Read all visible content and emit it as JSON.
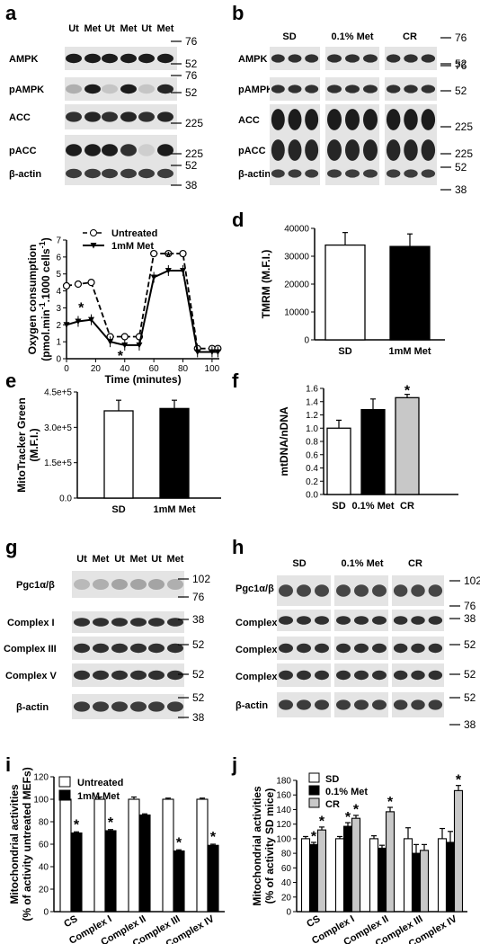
{
  "panels": {
    "a": {
      "letter": "a",
      "columns": [
        "Ut",
        "Met",
        "Ut",
        "Met",
        "Ut",
        "Met"
      ],
      "rows": [
        "AMPK",
        "pAMPK",
        "ACC",
        "pACC",
        "β-actin"
      ],
      "markers": [
        "76",
        "52",
        "76",
        "52",
        "225",
        "225",
        "52",
        "38"
      ]
    },
    "b": {
      "letter": "b",
      "groups": [
        "SD",
        "0.1% Met",
        "CR"
      ],
      "rows": [
        "AMPK",
        "pAMPK",
        "ACC",
        "pACC",
        "β-actin"
      ],
      "markers": [
        "76",
        "52",
        "76",
        "52",
        "225",
        "225",
        "52",
        "38"
      ]
    },
    "g": {
      "letter": "g",
      "columns": [
        "Ut",
        "Met",
        "Ut",
        "Met",
        "Ut",
        "Met"
      ],
      "rows": [
        "Pgc1α/β",
        "Complex I",
        "Complex III",
        "Complex V",
        "β-actin"
      ],
      "markers": [
        "102",
        "76",
        "38",
        "52",
        "52",
        "52",
        "38"
      ]
    },
    "h": {
      "letter": "h",
      "groups": [
        "SD",
        "0.1% Met",
        "CR"
      ],
      "rows": [
        "Pgc1α/β",
        "Complex I",
        "Complex III",
        "Complex V",
        "β-actin"
      ],
      "markers": [
        "102",
        "76",
        "38",
        "52",
        "52",
        "52",
        "38"
      ]
    }
  },
  "chart_data": [
    {
      "panel": "c",
      "type": "line",
      "ylabel": "Oxygen consumption (pmol.min-1.1000 cells-1)",
      "ylabel_line1": "Oxygen consumption",
      "ylabel_line2": "(pmol.min",
      "ylabel_sup1": "-1",
      "ylabel_mid": ".1000 cells",
      "ylabel_sup2": "-1",
      "ylabel_end": ")",
      "xlabel": "Time (minutes)",
      "xlim": [
        0,
        105
      ],
      "ylim": [
        0,
        7
      ],
      "xticks": [
        "0",
        "20",
        "40",
        "60",
        "80",
        "100"
      ],
      "yticks": [
        "0",
        "1",
        "2",
        "3",
        "4",
        "5",
        "6",
        "7"
      ],
      "x": [
        0,
        8,
        17,
        30,
        40,
        50,
        60,
        70,
        80,
        90,
        100,
        104
      ],
      "series": [
        {
          "name": "Untreated",
          "values": [
            4.3,
            4.4,
            4.5,
            1.3,
            1.3,
            1.3,
            6.2,
            6.2,
            6.2,
            0.6,
            0.6,
            0.6
          ]
        },
        {
          "name": "1mM Met",
          "values": [
            2.0,
            2.2,
            2.3,
            1.0,
            0.8,
            0.8,
            4.8,
            5.2,
            5.2,
            0.4,
            0.4,
            0.4
          ]
        }
      ],
      "annotations": [
        "*",
        "*",
        "*"
      ]
    },
    {
      "panel": "d",
      "type": "bar",
      "ylabel": "TMRM (M.F.I.)",
      "categories": [
        "SD",
        "1mM Met"
      ],
      "values": [
        34000,
        33500
      ],
      "errors": [
        4500,
        4500
      ],
      "ylim": [
        0,
        40000
      ],
      "yticks": [
        "0",
        "10000",
        "20000",
        "30000",
        "40000"
      ]
    },
    {
      "panel": "e",
      "type": "bar",
      "ylabel": "MitoTracker Green (M.F.I.)",
      "ylabel_line1": "MitoTracker Green",
      "ylabel_line2": "(M.F.I.)",
      "categories": [
        "SD",
        "1mM Met"
      ],
      "values": [
        370000,
        380000
      ],
      "errors": [
        45000,
        35000
      ],
      "ylim": [
        0,
        450000
      ],
      "yticks": [
        "0.0",
        "1.5e+5",
        "3.0e+5",
        "4.5e+5"
      ]
    },
    {
      "panel": "f",
      "type": "bar",
      "ylabel": "mtDNA/nDNA",
      "categories": [
        "SD",
        "0.1% Met",
        "CR"
      ],
      "values": [
        1.0,
        1.28,
        1.46
      ],
      "errors": [
        0.12,
        0.16,
        0.05
      ],
      "ylim": [
        0,
        1.6
      ],
      "yticks": [
        "0.0",
        "0.2",
        "0.4",
        "0.6",
        "0.8",
        "1.0",
        "1.2",
        "1.4",
        "1.6"
      ],
      "annotations": [
        "*"
      ]
    },
    {
      "panel": "i",
      "type": "bar",
      "ylabel": "Mitochondrial activities (% of activity untreated MEFs)",
      "ylabel_line1": "Mitochondrial activities",
      "ylabel_line2": "(% of activity untreated MEFs)",
      "categories": [
        "CS",
        "Complex I",
        "Complex II",
        "Complex III",
        "Complex IV"
      ],
      "series": [
        {
          "name": "Untreated",
          "values": [
            100,
            100,
            100,
            100,
            100
          ],
          "errors": [
            2,
            2,
            2,
            1,
            1
          ]
        },
        {
          "name": "1mM Met",
          "values": [
            70,
            72,
            86,
            54,
            59
          ],
          "errors": [
            1,
            1,
            1,
            1,
            1
          ]
        }
      ],
      "ylim": [
        0,
        120
      ],
      "yticks": [
        "0",
        "20",
        "40",
        "60",
        "80",
        "100",
        "120"
      ],
      "annotations": [
        "*",
        "*",
        "*",
        "*"
      ]
    },
    {
      "panel": "j",
      "type": "bar",
      "ylabel": "Mitochondrial activities (% of activity SD mice)",
      "ylabel_line1": "Mitochondrial activities",
      "ylabel_line2": "(% of activity SD mice)",
      "categories": [
        "CS",
        "Complex I",
        "Complex II",
        "Complex III",
        "Complex IV"
      ],
      "series": [
        {
          "name": "SD",
          "values": [
            100,
            100,
            100,
            100,
            100
          ],
          "errors": [
            3,
            3,
            4,
            15,
            14
          ]
        },
        {
          "name": "0.1% Met",
          "values": [
            92,
            117,
            87,
            80,
            95
          ],
          "errors": [
            3,
            5,
            4,
            12,
            15
          ]
        },
        {
          "name": "CR",
          "values": [
            112,
            128,
            137,
            84,
            166
          ],
          "errors": [
            4,
            4,
            6,
            8,
            7
          ]
        }
      ],
      "ylim": [
        0,
        180
      ],
      "yticks": [
        "0",
        "20",
        "40",
        "60",
        "80",
        "100",
        "120",
        "140",
        "160",
        "180"
      ],
      "annotations": [
        "*",
        "*",
        "*",
        "*",
        "*",
        "*"
      ]
    }
  ]
}
